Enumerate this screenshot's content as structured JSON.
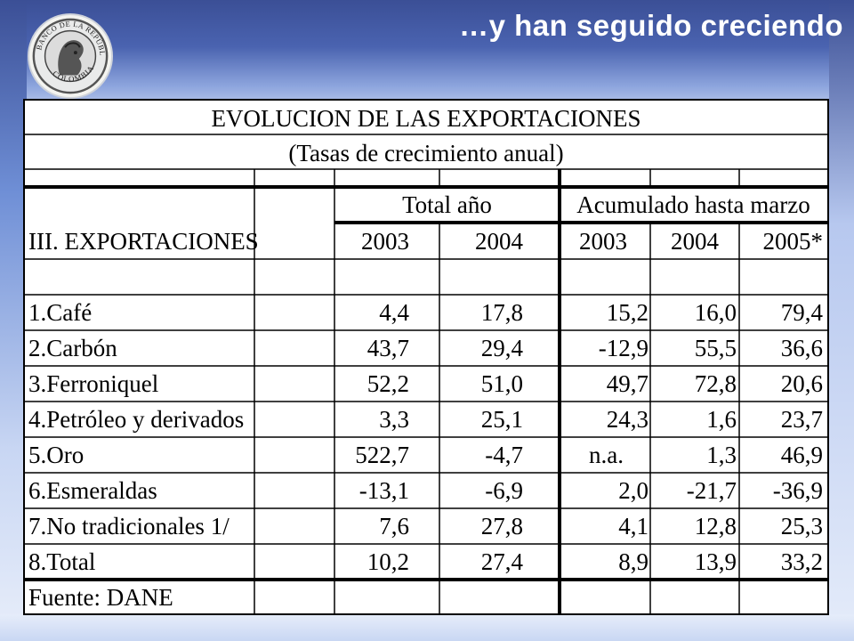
{
  "slide": {
    "title": "…y han seguido creciendo",
    "logo_text": "BANCO DE LA REPÚBLICA · COLOMBIA"
  },
  "table": {
    "title": "EVOLUCION DE LAS EXPORTACIONES",
    "subtitle": "(Tasas de crecimiento anual)",
    "group_total": "Total año",
    "group_acum": "Acumulado hasta marzo",
    "row_header": "III. EXPORTACIONES",
    "years": [
      "2003",
      "2004",
      "2003",
      "2004",
      "2005*"
    ],
    "rows": [
      {
        "label": "1.Café",
        "values": [
          "4,4",
          "17,8",
          "15,2",
          "16,0",
          "79,4"
        ]
      },
      {
        "label": "2.Carbón",
        "values": [
          "43,7",
          "29,4",
          "-12,9",
          "55,5",
          "36,6"
        ]
      },
      {
        "label": "3.Ferroniquel",
        "values": [
          "52,2",
          "51,0",
          "49,7",
          "72,8",
          "20,6"
        ]
      },
      {
        "label": "4.Petróleo y derivados",
        "values": [
          "3,3",
          "25,1",
          "24,3",
          "1,6",
          "23,7"
        ]
      },
      {
        "label": "5.Oro",
        "values": [
          "522,7",
          "-4,7",
          "n.a.",
          "1,3",
          "46,9"
        ]
      },
      {
        "label": "6.Esmeraldas",
        "values": [
          "-13,1",
          "-6,9",
          "2,0",
          "-21,7",
          "-36,9"
        ]
      },
      {
        "label": "7.No tradicionales 1/",
        "values": [
          "7,6",
          "27,8",
          "4,1",
          "12,8",
          "25,3"
        ]
      },
      {
        "label": "8.Total",
        "values": [
          "10,2",
          "27,4",
          "8,9",
          "13,9",
          "33,2"
        ]
      }
    ],
    "source": "Fuente: DANE"
  }
}
